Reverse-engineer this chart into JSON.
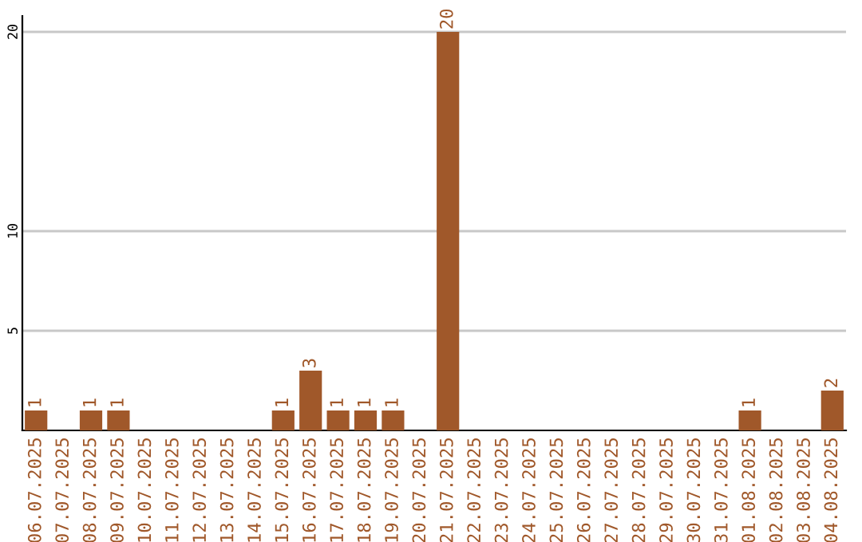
{
  "chart_data": {
    "type": "bar",
    "categories": [
      "06.07.2025",
      "07.07.2025",
      "08.07.2025",
      "09.07.2025",
      "10.07.2025",
      "11.07.2025",
      "12.07.2025",
      "13.07.2025",
      "14.07.2025",
      "15.07.2025",
      "16.07.2025",
      "17.07.2025",
      "18.07.2025",
      "19.07.2025",
      "20.07.2025",
      "21.07.2025",
      "22.07.2025",
      "23.07.2025",
      "24.07.2025",
      "25.07.2025",
      "26.07.2025",
      "27.07.2025",
      "28.07.2025",
      "29.07.2025",
      "30.07.2025",
      "31.07.2025",
      "01.08.2025",
      "02.08.2025",
      "03.08.2025",
      "04.08.2025"
    ],
    "values": [
      1,
      0,
      1,
      1,
      0,
      0,
      0,
      0,
      0,
      1,
      3,
      1,
      1,
      1,
      0,
      20,
      0,
      0,
      0,
      0,
      0,
      0,
      0,
      0,
      0,
      0,
      1,
      0,
      0,
      2
    ],
    "value_labels": [
      "1",
      null,
      "1",
      "1",
      null,
      null,
      null,
      null,
      null,
      "1",
      "3",
      "1",
      "1",
      "1",
      null,
      "20",
      null,
      null,
      null,
      null,
      null,
      null,
      null,
      null,
      null,
      null,
      "1",
      null,
      null,
      "2"
    ],
    "color": "#a0582a",
    "ylim": [
      0,
      20.8
    ],
    "yticks": [
      5,
      10,
      20
    ],
    "grid": "y"
  }
}
